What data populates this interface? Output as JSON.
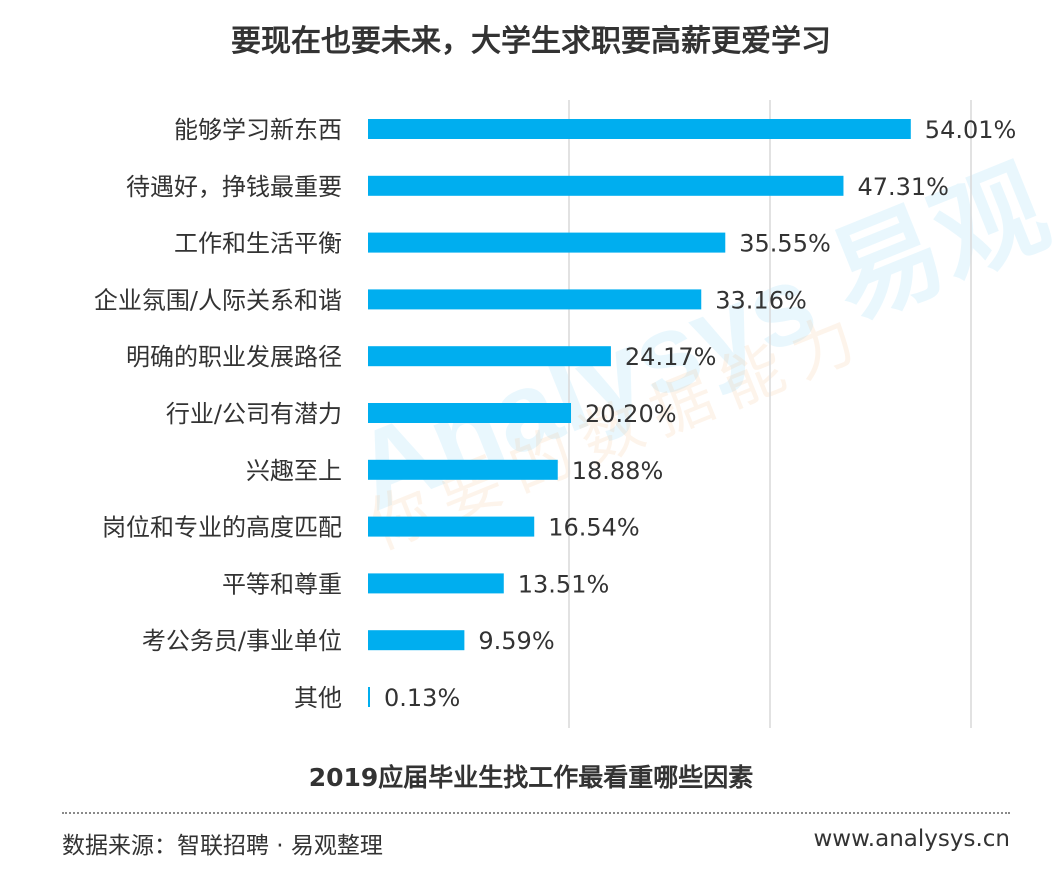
{
  "title": "要现在也要未来，大学生求职要高薪更爱学习",
  "subtitle": "2019应届毕业生找工作最看重哪些因素",
  "source": "数据来源：智联招聘 · 易观整理",
  "website": "www.analysys.cn",
  "watermark": {
    "logo": "Analysys 易观",
    "slogan": "你要的数据能力"
  },
  "colors": {
    "bar": "#00aeef",
    "grid": "#d9d9d9",
    "text": "#333333"
  },
  "chart_data": {
    "type": "bar",
    "orientation": "horizontal",
    "categories": [
      "能够学习新东西",
      "待遇好，挣钱最重要",
      "工作和生活平衡",
      "企业氛围/人际关系和谐",
      "明确的职业发展路径",
      "行业/公司有潜力",
      "兴趣至上",
      "岗位和专业的高度匹配",
      "平等和尊重",
      "考公务员/事业单位",
      "其他"
    ],
    "values": [
      54.01,
      47.31,
      35.55,
      33.16,
      24.17,
      20.2,
      18.88,
      16.54,
      13.51,
      9.59,
      0.13
    ],
    "labels": [
      "54.01%",
      "47.31%",
      "35.55%",
      "33.16%",
      "24.17%",
      "20.20%",
      "18.88%",
      "16.54%",
      "13.51%",
      "9.59%",
      "0.13%"
    ],
    "xlim": [
      0,
      60
    ],
    "grid": true,
    "legend": "none"
  }
}
